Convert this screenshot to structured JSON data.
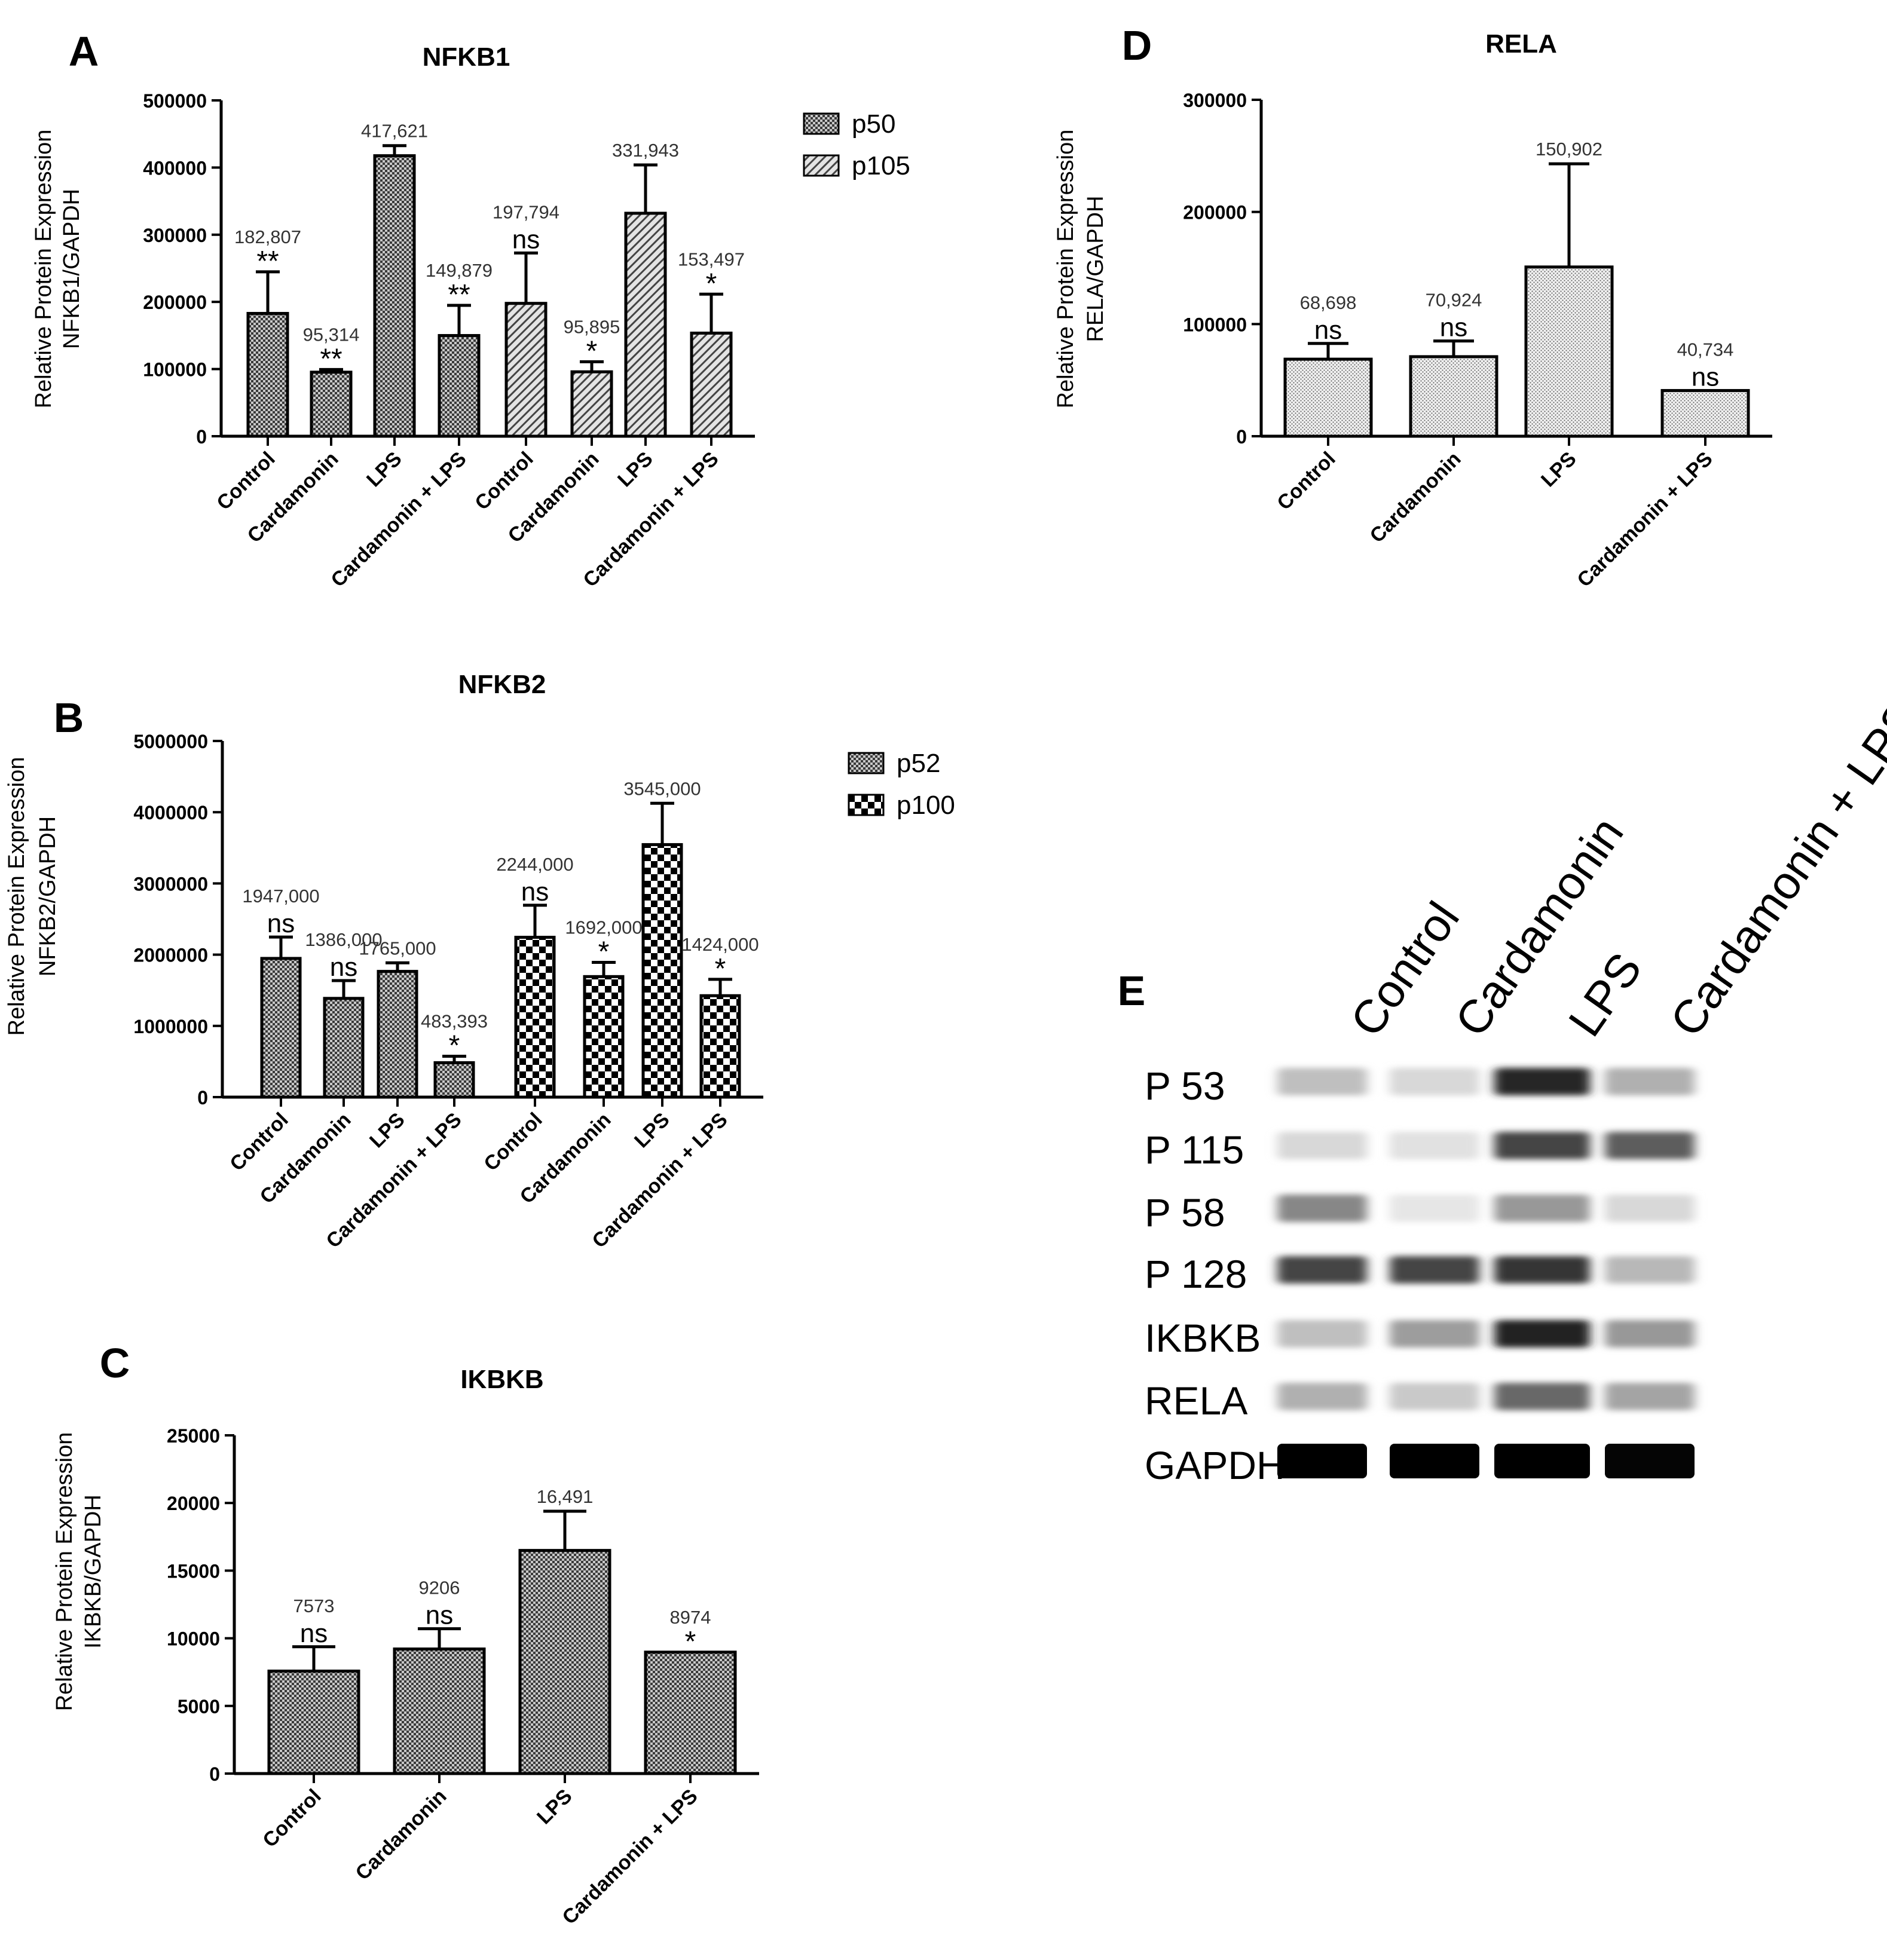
{
  "chart_data": [
    {
      "panel": "A",
      "type": "bar",
      "title": "NFKB1",
      "ylabel": [
        "Relative Protein Expression",
        "NFKB1/GAPDH"
      ],
      "ylim": [
        0,
        500000
      ],
      "yticks": [
        0,
        100000,
        200000,
        300000,
        400000,
        500000
      ],
      "tick_labels": [
        "0",
        "100000",
        "200000",
        "300000",
        "400000",
        "500000"
      ],
      "categories": [
        "Control",
        "Cardamonin",
        "LPS",
        "Cardamonin + LPS"
      ],
      "legend_position": "right",
      "series": [
        {
          "name": "p50",
          "pattern": "dense-check",
          "values": [
            182807,
            95314,
            417621,
            149879
          ],
          "errors": [
            62000,
            4000,
            15000,
            45000
          ],
          "labels": [
            "182,807",
            "95,314",
            "417,621",
            "149,879"
          ],
          "sig": [
            "**",
            "**",
            "",
            "**"
          ]
        },
        {
          "name": "p105",
          "pattern": "diagonal",
          "values": [
            197794,
            95895,
            331943,
            153497
          ],
          "errors": [
            75000,
            15000,
            72000,
            58000
          ],
          "labels": [
            "197,794",
            "95,895",
            "331,943",
            "153,497"
          ],
          "sig": [
            "ns",
            "*",
            "",
            "*"
          ]
        }
      ]
    },
    {
      "panel": "B",
      "type": "bar",
      "title": "NFKB2",
      "ylabel": [
        "Relative Protein Expression",
        "NFKB2/GAPDH"
      ],
      "ylim": [
        0,
        5000000
      ],
      "yticks": [
        0,
        1000000,
        2000000,
        3000000,
        4000000,
        5000000
      ],
      "tick_labels": [
        "0",
        "1000000",
        "2000000",
        "3000000",
        "4000000",
        "5000000"
      ],
      "categories": [
        "Control",
        "Cardamonin",
        "LPS",
        "Cardamonin + LPS"
      ],
      "legend_position": "right",
      "series": [
        {
          "name": "p52",
          "pattern": "dense-check",
          "values": [
            1947000,
            1386000,
            1765000,
            483393
          ],
          "errors": [
            300000,
            250000,
            120000,
            90000
          ],
          "labels": [
            "1947,000",
            "1386,000",
            "1765,000",
            "483,393"
          ],
          "sig": [
            "ns",
            "ns",
            "",
            "*"
          ]
        },
        {
          "name": "p100",
          "pattern": "coarse-check",
          "values": [
            2244000,
            1692000,
            3545000,
            1424000
          ],
          "errors": [
            450000,
            200000,
            580000,
            230000
          ],
          "labels": [
            "2244,000",
            "1692,000",
            "3545,000",
            "1424,000"
          ],
          "sig": [
            "ns",
            "*",
            "",
            "*"
          ]
        }
      ]
    },
    {
      "panel": "C",
      "type": "bar",
      "title": "IKBKB",
      "ylabel": [
        "Relative Protein Expression",
        "IKBKB/GAPDH"
      ],
      "ylim": [
        0,
        25000
      ],
      "yticks": [
        0,
        5000,
        10000,
        15000,
        20000,
        25000
      ],
      "tick_labels": [
        "0",
        "5000",
        "10000",
        "15000",
        "20000",
        "25000"
      ],
      "categories": [
        "Control",
        "Cardamonin",
        "LPS",
        "Cardamonin + LPS"
      ],
      "series": [
        {
          "name": "",
          "pattern": "dense-check",
          "values": [
            7573,
            9206,
            16491,
            8974
          ],
          "errors": [
            1800,
            1500,
            2900,
            0
          ],
          "labels": [
            "7573",
            "9206",
            "16,491",
            "8974"
          ],
          "sig": [
            "ns",
            "ns",
            "",
            "*"
          ]
        }
      ]
    },
    {
      "panel": "D",
      "type": "bar",
      "title": "RELA",
      "ylabel": [
        "Relative Protein Expression",
        "RELA/GAPDH"
      ],
      "ylim": [
        0,
        300000
      ],
      "yticks": [
        0,
        100000,
        200000,
        300000
      ],
      "tick_labels": [
        "0",
        "100000",
        "200000",
        "300000"
      ],
      "categories": [
        "Control",
        "Cardamonin",
        "LPS",
        "Cardamonin + LPS"
      ],
      "series": [
        {
          "name": "",
          "pattern": "dots",
          "values": [
            68698,
            70924,
            150902,
            40734
          ],
          "errors": [
            14000,
            14000,
            92000,
            0
          ],
          "labels": [
            "68,698",
            "70,924",
            "150,902",
            "40,734"
          ],
          "sig": [
            "ns",
            "ns",
            "",
            "ns"
          ]
        }
      ]
    }
  ],
  "blot": {
    "panel": "E",
    "lanes": [
      "Control",
      "Cardamonin",
      "LPS",
      "Cardamonin + LPS"
    ],
    "rows": [
      {
        "label": "P 53",
        "intensity": [
          0.22,
          0.12,
          0.85,
          0.28
        ]
      },
      {
        "label": "P 115",
        "intensity": [
          0.12,
          0.08,
          0.72,
          0.62
        ]
      },
      {
        "label": "P 58",
        "intensity": [
          0.45,
          0.06,
          0.38,
          0.12
        ]
      },
      {
        "label": "P 128",
        "intensity": [
          0.72,
          0.72,
          0.78,
          0.25
        ]
      },
      {
        "label": "IKBKB",
        "intensity": [
          0.22,
          0.36,
          0.86,
          0.38
        ]
      },
      {
        "label": "RELA",
        "intensity": [
          0.28,
          0.18,
          0.58,
          0.33
        ]
      },
      {
        "label": "GAPDH",
        "intensity": [
          1.0,
          1.0,
          1.0,
          0.98
        ]
      }
    ]
  }
}
